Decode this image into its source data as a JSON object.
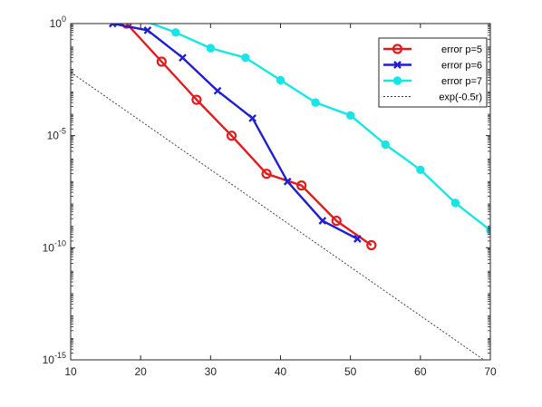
{
  "chart_data": {
    "type": "line",
    "xlim": [
      10,
      70
    ],
    "ylim": [
      1e-15,
      1
    ],
    "yscale": "log",
    "grid": false,
    "legend_position": "top-right",
    "x_ticks": [
      "10",
      "20",
      "30",
      "40",
      "50",
      "60",
      "70"
    ],
    "y_ticks": [
      {
        "base": "10",
        "exp": "0"
      },
      {
        "base": "10",
        "exp": "-5"
      },
      {
        "base": "10",
        "exp": "-10"
      },
      {
        "base": "10",
        "exp": "-15"
      }
    ],
    "series": [
      {
        "name": "error p=5",
        "color": "#e41a1c",
        "marker": "circle",
        "x": [
          18,
          23,
          28,
          33,
          38,
          43,
          48,
          53
        ],
        "y": [
          1.0,
          0.02,
          0.0004,
          1e-05,
          2e-07,
          6e-08,
          1.6e-09,
          1.3e-10
        ]
      },
      {
        "name": "error p=6",
        "color": "#1f1fd1",
        "marker": "x",
        "x": [
          16,
          21,
          26,
          31,
          36,
          41,
          46,
          51
        ],
        "y": [
          1.0,
          0.5,
          0.03,
          0.001,
          6e-05,
          9e-08,
          1.6e-09,
          2.5e-10
        ]
      },
      {
        "name": "error p=7",
        "color": "#17e6e6",
        "marker": "dot",
        "x": [
          20,
          25,
          30,
          35,
          40,
          45,
          50,
          55,
          60,
          65,
          70
        ],
        "y": [
          1.5,
          0.4,
          0.08,
          0.03,
          0.003,
          0.0003,
          8e-05,
          4e-06,
          3e-07,
          1e-08,
          6e-10
        ]
      },
      {
        "name": "exp(-0.5r)",
        "color": "#333333",
        "marker": "none",
        "dash": true,
        "x": [
          10,
          70
        ],
        "y": [
          0.006737947,
          6.30511676e-16
        ]
      }
    ]
  }
}
